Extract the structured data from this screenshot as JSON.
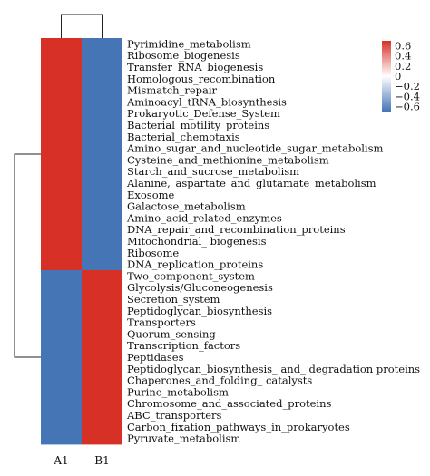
{
  "chart_data": {
    "type": "heatmap",
    "columns": [
      "A1",
      "B1"
    ],
    "rows": [
      "Pyrimidine_metabolism",
      "Ribosome_biogenesis",
      "Transfer_RNA_biogenesis",
      "Homologous_recombination",
      "Mismatch_repair",
      "Aminoacyl_tRNA_biosynthesis",
      "Prokaryotic_Defense_System",
      "Bacterial_motility_proteins",
      "Bacterial_chemotaxis",
      "Amino_sugar_and_nucleotide_sugar_metabolism",
      "Cysteine_and_methionine_metabolism",
      "Starch_and_sucrose_metabolism",
      "Alanine,_aspartate_and_glutamate_metabolism",
      "Exosome",
      "Galactose_metabolism",
      "Amino_acid_related_enzymes",
      "DNA_repair_and_recombination_proteins",
      "Mitochondrial_ biogenesis",
      "Ribosome",
      "DNA_replication_proteins",
      "Two_component_system",
      "Glycolysis/Gluconeogenesis",
      "Secretion_system",
      "Peptidoglycan_biosynthesis",
      "Transporters",
      "Quorum_sensing",
      "Transcription_factors",
      "Peptidases",
      "Peptidoglycan_biosynthesis_ and_ degradation proteins",
      "Chaperones_and_folding_ catalysts",
      "Purine_metabolism",
      "Chromosome_and_associated_proteins",
      "ABC_transporters",
      "Carbon_fixation_pathways_in_prokaryotes",
      "Pyruvate_metabolism"
    ],
    "values": [
      [
        0.7,
        -0.7
      ],
      [
        0.7,
        -0.7
      ],
      [
        0.7,
        -0.7
      ],
      [
        0.7,
        -0.7
      ],
      [
        0.7,
        -0.7
      ],
      [
        0.7,
        -0.7
      ],
      [
        0.7,
        -0.7
      ],
      [
        0.7,
        -0.7
      ],
      [
        0.7,
        -0.7
      ],
      [
        0.7,
        -0.7
      ],
      [
        0.7,
        -0.7
      ],
      [
        0.7,
        -0.7
      ],
      [
        0.7,
        -0.7
      ],
      [
        0.7,
        -0.7
      ],
      [
        0.7,
        -0.7
      ],
      [
        0.7,
        -0.7
      ],
      [
        0.7,
        -0.7
      ],
      [
        0.7,
        -0.7
      ],
      [
        0.7,
        -0.7
      ],
      [
        0.7,
        -0.7
      ],
      [
        -0.7,
        0.7
      ],
      [
        -0.7,
        0.7
      ],
      [
        -0.7,
        0.7
      ],
      [
        -0.7,
        0.7
      ],
      [
        -0.7,
        0.7
      ],
      [
        -0.7,
        0.7
      ],
      [
        -0.7,
        0.7
      ],
      [
        -0.7,
        0.7
      ],
      [
        -0.7,
        0.7
      ],
      [
        -0.7,
        0.7
      ],
      [
        -0.7,
        0.7
      ],
      [
        -0.7,
        0.7
      ],
      [
        -0.7,
        0.7
      ],
      [
        -0.7,
        0.7
      ],
      [
        -0.7,
        0.7
      ]
    ],
    "color_scale": {
      "min": -0.7,
      "max": 0.7,
      "low_color": "#4575b4",
      "mid_color": "#ffffff",
      "high_color": "#d73027",
      "ticks": [
        0.6,
        0.4,
        0.2,
        0,
        -0.2,
        -0.4,
        -0.6
      ],
      "tick_labels": [
        "0.6",
        "0.4",
        "0.2",
        "0",
        "−0.2",
        "−0.4",
        "−0.6"
      ]
    },
    "legend_position": "top-right",
    "row_dendrogram": true,
    "column_dendrogram": true,
    "row_clusters": [
      [
        0,
        19
      ],
      [
        20,
        34
      ]
    ]
  }
}
